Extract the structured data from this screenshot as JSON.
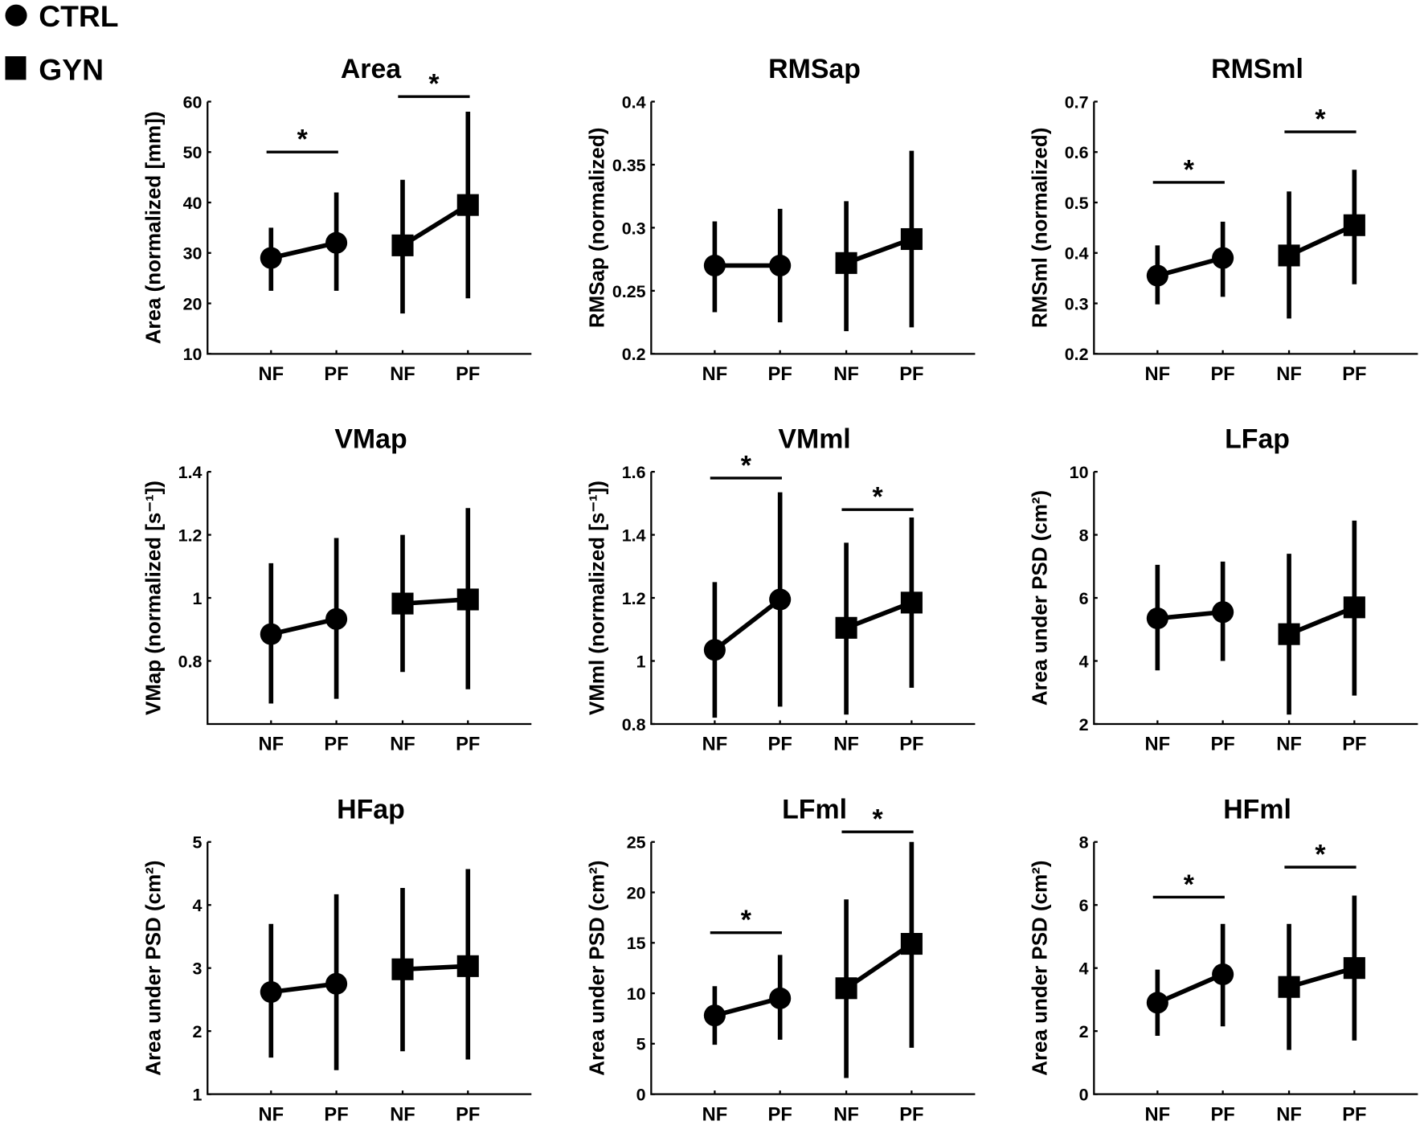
{
  "legend": [
    {
      "label": "CTRL",
      "marker": "circle"
    },
    {
      "label": "GYN",
      "marker": "square"
    }
  ],
  "chart_data": [
    {
      "type": "line",
      "title": "Area",
      "ylabel": "Area (normalized [mm])",
      "ylim": [
        10,
        60
      ],
      "yticks": [
        10,
        20,
        30,
        40,
        50,
        60
      ],
      "categories": [
        "NF",
        "PF",
        "NF",
        "PF"
      ],
      "series": [
        {
          "name": "CTRL",
          "mean": [
            29,
            32
          ],
          "err_low": [
            22.5,
            22.5
          ],
          "err_high": [
            35,
            42
          ]
        },
        {
          "name": "GYN",
          "mean": [
            31.5,
            39.5
          ],
          "err_low": [
            18,
            21
          ],
          "err_high": [
            44.5,
            58
          ]
        }
      ],
      "significance": [
        {
          "group": "CTRL",
          "level": 50,
          "label": "*"
        },
        {
          "group": "GYN",
          "level": 61,
          "label": "*"
        }
      ]
    },
    {
      "type": "line",
      "title": "RMSap",
      "ylabel": "RMSap (normalized)",
      "ylim": [
        0.2,
        0.4
      ],
      "yticks": [
        0.2,
        0.25,
        0.3,
        0.35,
        0.4
      ],
      "categories": [
        "NF",
        "PF",
        "NF",
        "PF"
      ],
      "series": [
        {
          "name": "CTRL",
          "mean": [
            0.27,
            0.27
          ],
          "err_low": [
            0.233,
            0.225
          ],
          "err_high": [
            0.305,
            0.315
          ]
        },
        {
          "name": "GYN",
          "mean": [
            0.272,
            0.291
          ],
          "err_low": [
            0.218,
            0.221
          ],
          "err_high": [
            0.321,
            0.361
          ]
        }
      ],
      "significance": []
    },
    {
      "type": "line",
      "title": "RMSml",
      "ylabel": "RMSml (normalized)",
      "ylim": [
        0.2,
        0.7
      ],
      "yticks": [
        0.2,
        0.3,
        0.4,
        0.5,
        0.6,
        0.7
      ],
      "categories": [
        "NF",
        "PF",
        "NF",
        "PF"
      ],
      "series": [
        {
          "name": "CTRL",
          "mean": [
            0.355,
            0.39
          ],
          "err_low": [
            0.298,
            0.313
          ],
          "err_high": [
            0.415,
            0.462
          ]
        },
        {
          "name": "GYN",
          "mean": [
            0.395,
            0.455
          ],
          "err_low": [
            0.27,
            0.338
          ],
          "err_high": [
            0.522,
            0.565
          ]
        }
      ],
      "significance": [
        {
          "group": "CTRL",
          "level": 0.54,
          "label": "*"
        },
        {
          "group": "GYN",
          "level": 0.64,
          "label": "*"
        }
      ]
    },
    {
      "type": "line",
      "title": "VMap",
      "ylabel": "VMap (normalized [s⁻¹])",
      "ylim": [
        0.6,
        1.4
      ],
      "yticks": [
        0.8,
        1,
        1.2,
        1.4
      ],
      "categories": [
        "NF",
        "PF",
        "NF",
        "PF"
      ],
      "series": [
        {
          "name": "CTRL",
          "mean": [
            0.885,
            0.933
          ],
          "err_low": [
            0.665,
            0.68
          ],
          "err_high": [
            1.11,
            1.19
          ]
        },
        {
          "name": "GYN",
          "mean": [
            0.982,
            0.995
          ],
          "err_low": [
            0.765,
            0.71
          ],
          "err_high": [
            1.2,
            1.285
          ]
        }
      ],
      "significance": []
    },
    {
      "type": "line",
      "title": "VMml",
      "ylabel": "VMml (normalized [s⁻¹])",
      "ylim": [
        0.8,
        1.6
      ],
      "yticks": [
        0.8,
        1,
        1.2,
        1.4,
        1.6
      ],
      "categories": [
        "NF",
        "PF",
        "NF",
        "PF"
      ],
      "series": [
        {
          "name": "CTRL",
          "mean": [
            1.035,
            1.195
          ],
          "err_low": [
            0.82,
            0.855
          ],
          "err_high": [
            1.25,
            1.535
          ]
        },
        {
          "name": "GYN",
          "mean": [
            1.105,
            1.185
          ],
          "err_low": [
            0.83,
            0.915
          ],
          "err_high": [
            1.375,
            1.455
          ]
        }
      ],
      "significance": [
        {
          "group": "CTRL",
          "level": 1.58,
          "label": "*"
        },
        {
          "group": "GYN",
          "level": 1.48,
          "label": "*"
        }
      ]
    },
    {
      "type": "line",
      "title": "LFap",
      "ylabel": "Area under PSD (cm²)",
      "ylim": [
        2,
        10
      ],
      "yticks": [
        2,
        4,
        6,
        8,
        10
      ],
      "categories": [
        "NF",
        "PF",
        "NF",
        "PF"
      ],
      "series": [
        {
          "name": "CTRL",
          "mean": [
            5.35,
            5.55
          ],
          "err_low": [
            3.7,
            4
          ],
          "err_high": [
            7.05,
            7.15
          ]
        },
        {
          "name": "GYN",
          "mean": [
            4.85,
            5.7
          ],
          "err_low": [
            2.3,
            2.9
          ],
          "err_high": [
            7.4,
            8.45
          ]
        }
      ],
      "significance": []
    },
    {
      "type": "line",
      "title": "HFap",
      "ylabel": "Area under PSD (cm²)",
      "ylim": [
        1,
        5
      ],
      "yticks": [
        1,
        2,
        3,
        4,
        5
      ],
      "categories": [
        "NF",
        "PF",
        "NF",
        "PF"
      ],
      "series": [
        {
          "name": "CTRL",
          "mean": [
            2.62,
            2.75
          ],
          "err_low": [
            1.58,
            1.38
          ],
          "err_high": [
            3.7,
            4.17
          ]
        },
        {
          "name": "GYN",
          "mean": [
            2.98,
            3.03
          ],
          "err_low": [
            1.68,
            1.55
          ],
          "err_high": [
            4.27,
            4.57
          ]
        }
      ],
      "significance": []
    },
    {
      "type": "line",
      "title": "LFml",
      "ylabel": "Area under PSD (cm²)",
      "ylim": [
        0,
        25
      ],
      "yticks": [
        0,
        5,
        10,
        15,
        20,
        25
      ],
      "categories": [
        "NF",
        "PF",
        "NF",
        "PF"
      ],
      "series": [
        {
          "name": "CTRL",
          "mean": [
            7.8,
            9.5
          ],
          "err_low": [
            4.9,
            5.4
          ],
          "err_high": [
            10.7,
            13.8
          ]
        },
        {
          "name": "GYN",
          "mean": [
            10.5,
            14.9
          ],
          "err_low": [
            1.6,
            4.6
          ],
          "err_high": [
            19.3,
            25
          ]
        }
      ],
      "significance": [
        {
          "group": "CTRL",
          "level": 16,
          "label": "*"
        },
        {
          "group": "GYN",
          "level": 26,
          "label": "*"
        }
      ]
    },
    {
      "type": "line",
      "title": "HFml",
      "ylabel": "Area under PSD (cm²)",
      "ylim": [
        0,
        8
      ],
      "yticks": [
        0,
        2,
        4,
        6,
        8
      ],
      "categories": [
        "NF",
        "PF",
        "NF",
        "PF"
      ],
      "series": [
        {
          "name": "CTRL",
          "mean": [
            2.9,
            3.8
          ],
          "err_low": [
            1.85,
            2.15
          ],
          "err_high": [
            3.95,
            5.4
          ]
        },
        {
          "name": "GYN",
          "mean": [
            3.4,
            4
          ],
          "err_low": [
            1.4,
            1.7
          ],
          "err_high": [
            5.4,
            6.3
          ]
        }
      ],
      "significance": [
        {
          "group": "CTRL",
          "level": 6.25,
          "label": "*"
        },
        {
          "group": "GYN",
          "level": 7.2,
          "label": "*"
        }
      ]
    }
  ]
}
